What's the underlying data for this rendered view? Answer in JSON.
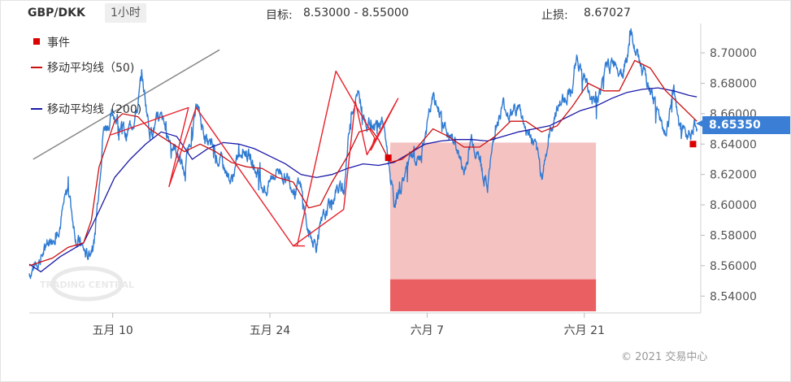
{
  "header": {
    "symbol": "GBP/DKK",
    "timeframe": "1小时",
    "target_label": "目标:",
    "target_value": "8.53000 - 8.55000",
    "stop_label": "止损:",
    "stop_value": "8.67027"
  },
  "legend": {
    "event_label": "事件",
    "ma50_label": "移动平均线（50)",
    "ma200_label": "移动平均线（200)"
  },
  "copyright": "© 2021 交易中心",
  "watermark": "TRADING CENTRAL",
  "colors": {
    "price": "#2f7bd3",
    "ma50": "#cc1111",
    "ma200": "#1a1aa8",
    "pattern": "#e8202a",
    "target_zone": "#f5c2c2",
    "target_core": "#ea5f62",
    "event": "#dd0000",
    "trend": "#888888",
    "last_price_bg": "#3a7fd5"
  },
  "chart_data": {
    "type": "line",
    "x_labels": [
      "五月 10",
      "五月 24",
      "六月 7",
      "六月 21"
    ],
    "ylim": [
      8.53,
      8.715
    ],
    "y_ticks": [
      "8.70000",
      "8.68000",
      "8.66000",
      "8.64000",
      "8.62000",
      "8.60000",
      "8.58000",
      "8.56000",
      "8.54000"
    ],
    "last_price": "8.65350",
    "series": [
      {
        "name": "移动平均线（50)",
        "key": "ma50"
      },
      {
        "name": "移动平均线（200)",
        "key": "ma200"
      }
    ],
    "price_ref": [
      [
        0,
        8.555
      ],
      [
        4,
        8.57
      ],
      [
        8,
        8.59
      ],
      [
        10,
        8.61
      ],
      [
        12,
        8.58
      ],
      [
        15,
        8.565
      ],
      [
        17,
        8.58
      ],
      [
        19,
        8.65
      ],
      [
        22,
        8.66
      ],
      [
        25,
        8.645
      ],
      [
        28,
        8.665
      ],
      [
        29,
        8.685
      ],
      [
        31,
        8.65
      ],
      [
        34,
        8.655
      ],
      [
        38,
        8.635
      ],
      [
        40,
        8.62
      ],
      [
        43,
        8.665
      ],
      [
        46,
        8.64
      ],
      [
        49,
        8.63
      ],
      [
        52,
        8.615
      ],
      [
        55,
        8.64
      ],
      [
        58,
        8.625
      ],
      [
        61,
        8.61
      ],
      [
        64,
        8.625
      ],
      [
        67,
        8.615
      ],
      [
        70,
        8.61
      ],
      [
        72,
        8.58
      ],
      [
        74,
        8.575
      ],
      [
        76,
        8.59
      ],
      [
        79,
        8.61
      ],
      [
        81,
        8.61
      ],
      [
        83,
        8.665
      ],
      [
        85,
        8.67
      ],
      [
        87,
        8.655
      ],
      [
        89,
        8.65
      ],
      [
        91,
        8.655
      ],
      [
        92,
        8.64
      ],
      [
        94,
        8.6
      ],
      [
        96,
        8.615
      ],
      [
        98,
        8.63
      ],
      [
        100,
        8.625
      ],
      [
        102,
        8.645
      ],
      [
        104,
        8.67
      ],
      [
        106,
        8.66
      ],
      [
        108,
        8.645
      ],
      [
        110,
        8.64
      ],
      [
        112,
        8.62
      ],
      [
        114,
        8.645
      ],
      [
        116,
        8.63
      ],
      [
        118,
        8.61
      ],
      [
        120,
        8.65
      ],
      [
        122,
        8.665
      ],
      [
        124,
        8.66
      ],
      [
        126,
        8.665
      ],
      [
        128,
        8.65
      ],
      [
        130,
        8.64
      ],
      [
        132,
        8.62
      ],
      [
        134,
        8.645
      ],
      [
        136,
        8.665
      ],
      [
        138,
        8.67
      ],
      [
        140,
        8.68
      ],
      [
        141,
        8.695
      ],
      [
        143,
        8.685
      ],
      [
        145,
        8.665
      ],
      [
        147,
        8.675
      ],
      [
        149,
        8.69
      ],
      [
        151,
        8.695
      ],
      [
        153,
        8.69
      ],
      [
        155,
        8.71
      ],
      [
        157,
        8.695
      ],
      [
        159,
        8.68
      ],
      [
        161,
        8.665
      ],
      [
        163,
        8.655
      ],
      [
        164,
        8.645
      ],
      [
        165,
        8.66
      ],
      [
        166,
        8.675
      ],
      [
        167,
        8.655
      ],
      [
        168,
        8.645
      ],
      [
        170,
        8.65
      ],
      [
        172,
        8.653
      ]
    ],
    "ma50": [
      [
        0,
        8.56
      ],
      [
        6,
        8.565
      ],
      [
        10,
        8.572
      ],
      [
        14,
        8.575
      ],
      [
        16,
        8.59
      ],
      [
        18,
        8.625
      ],
      [
        20,
        8.64
      ],
      [
        22,
        8.655
      ],
      [
        24,
        8.66
      ],
      [
        28,
        8.658
      ],
      [
        31,
        8.65
      ],
      [
        34,
        8.645
      ],
      [
        37,
        8.64
      ],
      [
        40,
        8.635
      ],
      [
        44,
        8.64
      ],
      [
        48,
        8.635
      ],
      [
        52,
        8.628
      ],
      [
        56,
        8.625
      ],
      [
        60,
        8.624
      ],
      [
        64,
        8.618
      ],
      [
        68,
        8.615
      ],
      [
        72,
        8.598
      ],
      [
        75,
        8.6
      ],
      [
        78,
        8.615
      ],
      [
        82,
        8.632
      ],
      [
        85,
        8.648
      ],
      [
        88,
        8.65
      ],
      [
        90,
        8.643
      ],
      [
        93,
        8.628
      ],
      [
        96,
        8.63
      ],
      [
        100,
        8.638
      ],
      [
        104,
        8.65
      ],
      [
        108,
        8.645
      ],
      [
        112,
        8.638
      ],
      [
        116,
        8.638
      ],
      [
        120,
        8.645
      ],
      [
        124,
        8.655
      ],
      [
        128,
        8.655
      ],
      [
        132,
        8.648
      ],
      [
        136,
        8.652
      ],
      [
        140,
        8.665
      ],
      [
        144,
        8.68
      ],
      [
        148,
        8.675
      ],
      [
        152,
        8.675
      ],
      [
        156,
        8.695
      ],
      [
        160,
        8.69
      ],
      [
        164,
        8.675
      ],
      [
        168,
        8.665
      ],
      [
        172,
        8.655
      ]
    ],
    "ma200": [
      [
        0,
        8.561
      ],
      [
        3,
        8.556
      ],
      [
        8,
        8.566
      ],
      [
        14,
        8.575
      ],
      [
        18,
        8.596
      ],
      [
        22,
        8.618
      ],
      [
        26,
        8.63
      ],
      [
        30,
        8.64
      ],
      [
        34,
        8.648
      ],
      [
        38,
        8.645
      ],
      [
        42,
        8.63
      ],
      [
        46,
        8.637
      ],
      [
        50,
        8.641
      ],
      [
        54,
        8.64
      ],
      [
        58,
        8.637
      ],
      [
        62,
        8.632
      ],
      [
        66,
        8.627
      ],
      [
        70,
        8.62
      ],
      [
        74,
        8.618
      ],
      [
        78,
        8.62
      ],
      [
        82,
        8.624
      ],
      [
        86,
        8.627
      ],
      [
        90,
        8.626
      ],
      [
        94,
        8.628
      ],
      [
        98,
        8.634
      ],
      [
        102,
        8.64
      ],
      [
        106,
        8.642
      ],
      [
        110,
        8.643
      ],
      [
        114,
        8.643
      ],
      [
        118,
        8.642
      ],
      [
        122,
        8.645
      ],
      [
        126,
        8.648
      ],
      [
        130,
        8.65
      ],
      [
        134,
        8.652
      ],
      [
        138,
        8.657
      ],
      [
        142,
        8.662
      ],
      [
        146,
        8.665
      ],
      [
        150,
        8.67
      ],
      [
        154,
        8.674
      ],
      [
        158,
        8.676
      ],
      [
        162,
        8.677
      ],
      [
        166,
        8.675
      ],
      [
        170,
        8.672
      ],
      [
        172,
        8.671
      ]
    ],
    "pattern_points": [
      [
        21,
        8.646
      ],
      [
        41,
        8.664
      ],
      [
        36,
        8.612
      ],
      [
        43,
        8.664
      ],
      [
        68,
        8.573
      ],
      [
        69,
        8.573
      ],
      [
        79,
        8.688
      ],
      [
        89,
        8.644
      ],
      [
        88,
        8.636
      ],
      [
        95,
        8.67
      ],
      [
        87,
        8.633
      ],
      [
        84,
        8.668
      ],
      [
        81,
        8.597
      ],
      [
        68,
        8.573
      ],
      [
        71,
        8.573
      ]
    ],
    "trend_line": [
      [
        1,
        8.63
      ],
      [
        49,
        8.702
      ]
    ],
    "target_zone": {
      "x_from": 93,
      "x_to": 146,
      "y_top": 8.641,
      "y_bottom": 8.53,
      "core_y_top": 8.551,
      "core_y_bottom": 8.53
    },
    "events": [
      [
        92.5,
        8.631
      ],
      [
        171,
        8.64
      ]
    ]
  }
}
